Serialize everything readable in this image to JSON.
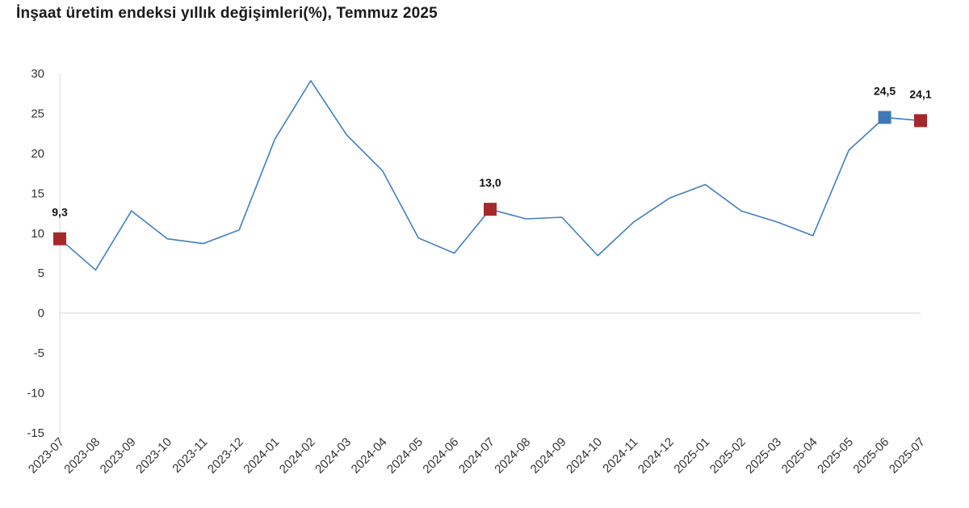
{
  "chart_data": {
    "type": "line",
    "title": "İnşaat üretim endeksi yıllık değişimleri(%), Temmuz 2025",
    "xlabel": "",
    "ylabel": "",
    "ylim": [
      -15,
      30
    ],
    "yticks": [
      30,
      25,
      20,
      15,
      10,
      5,
      0,
      -5,
      -10,
      -15
    ],
    "categories": [
      "2023-07",
      "2023-08",
      "2023-09",
      "2023-10",
      "2023-11",
      "2023-12",
      "2024-01",
      "2024-02",
      "2024-03",
      "2024-04",
      "2024-05",
      "2024-06",
      "2024-07",
      "2024-08",
      "2024-09",
      "2024-10",
      "2024-11",
      "2024-12",
      "2025-01",
      "2025-02",
      "2025-03",
      "2025-04",
      "2025-05",
      "2025-06",
      "2025-07"
    ],
    "series": [
      {
        "values": [
          9.3,
          5.4,
          12.8,
          9.3,
          8.7,
          10.4,
          21.8,
          29.1,
          22.3,
          17.8,
          9.4,
          7.5,
          13.0,
          11.8,
          12.0,
          7.2,
          11.4,
          14.4,
          16.1,
          12.8,
          11.4,
          9.7,
          20.4,
          24.5,
          24.1
        ],
        "color": "#3f7fc3"
      }
    ],
    "highlights": [
      {
        "category": "2023-07",
        "label": "9,3",
        "color": "#a6282a"
      },
      {
        "category": "2024-07",
        "label": "13,0",
        "color": "#a6282a"
      },
      {
        "category": "2025-06",
        "label": "24,5",
        "color": "#3f78b7"
      },
      {
        "category": "2025-07",
        "label": "24,1",
        "color": "#a6282a"
      }
    ],
    "grid": false,
    "zero_line": true
  }
}
